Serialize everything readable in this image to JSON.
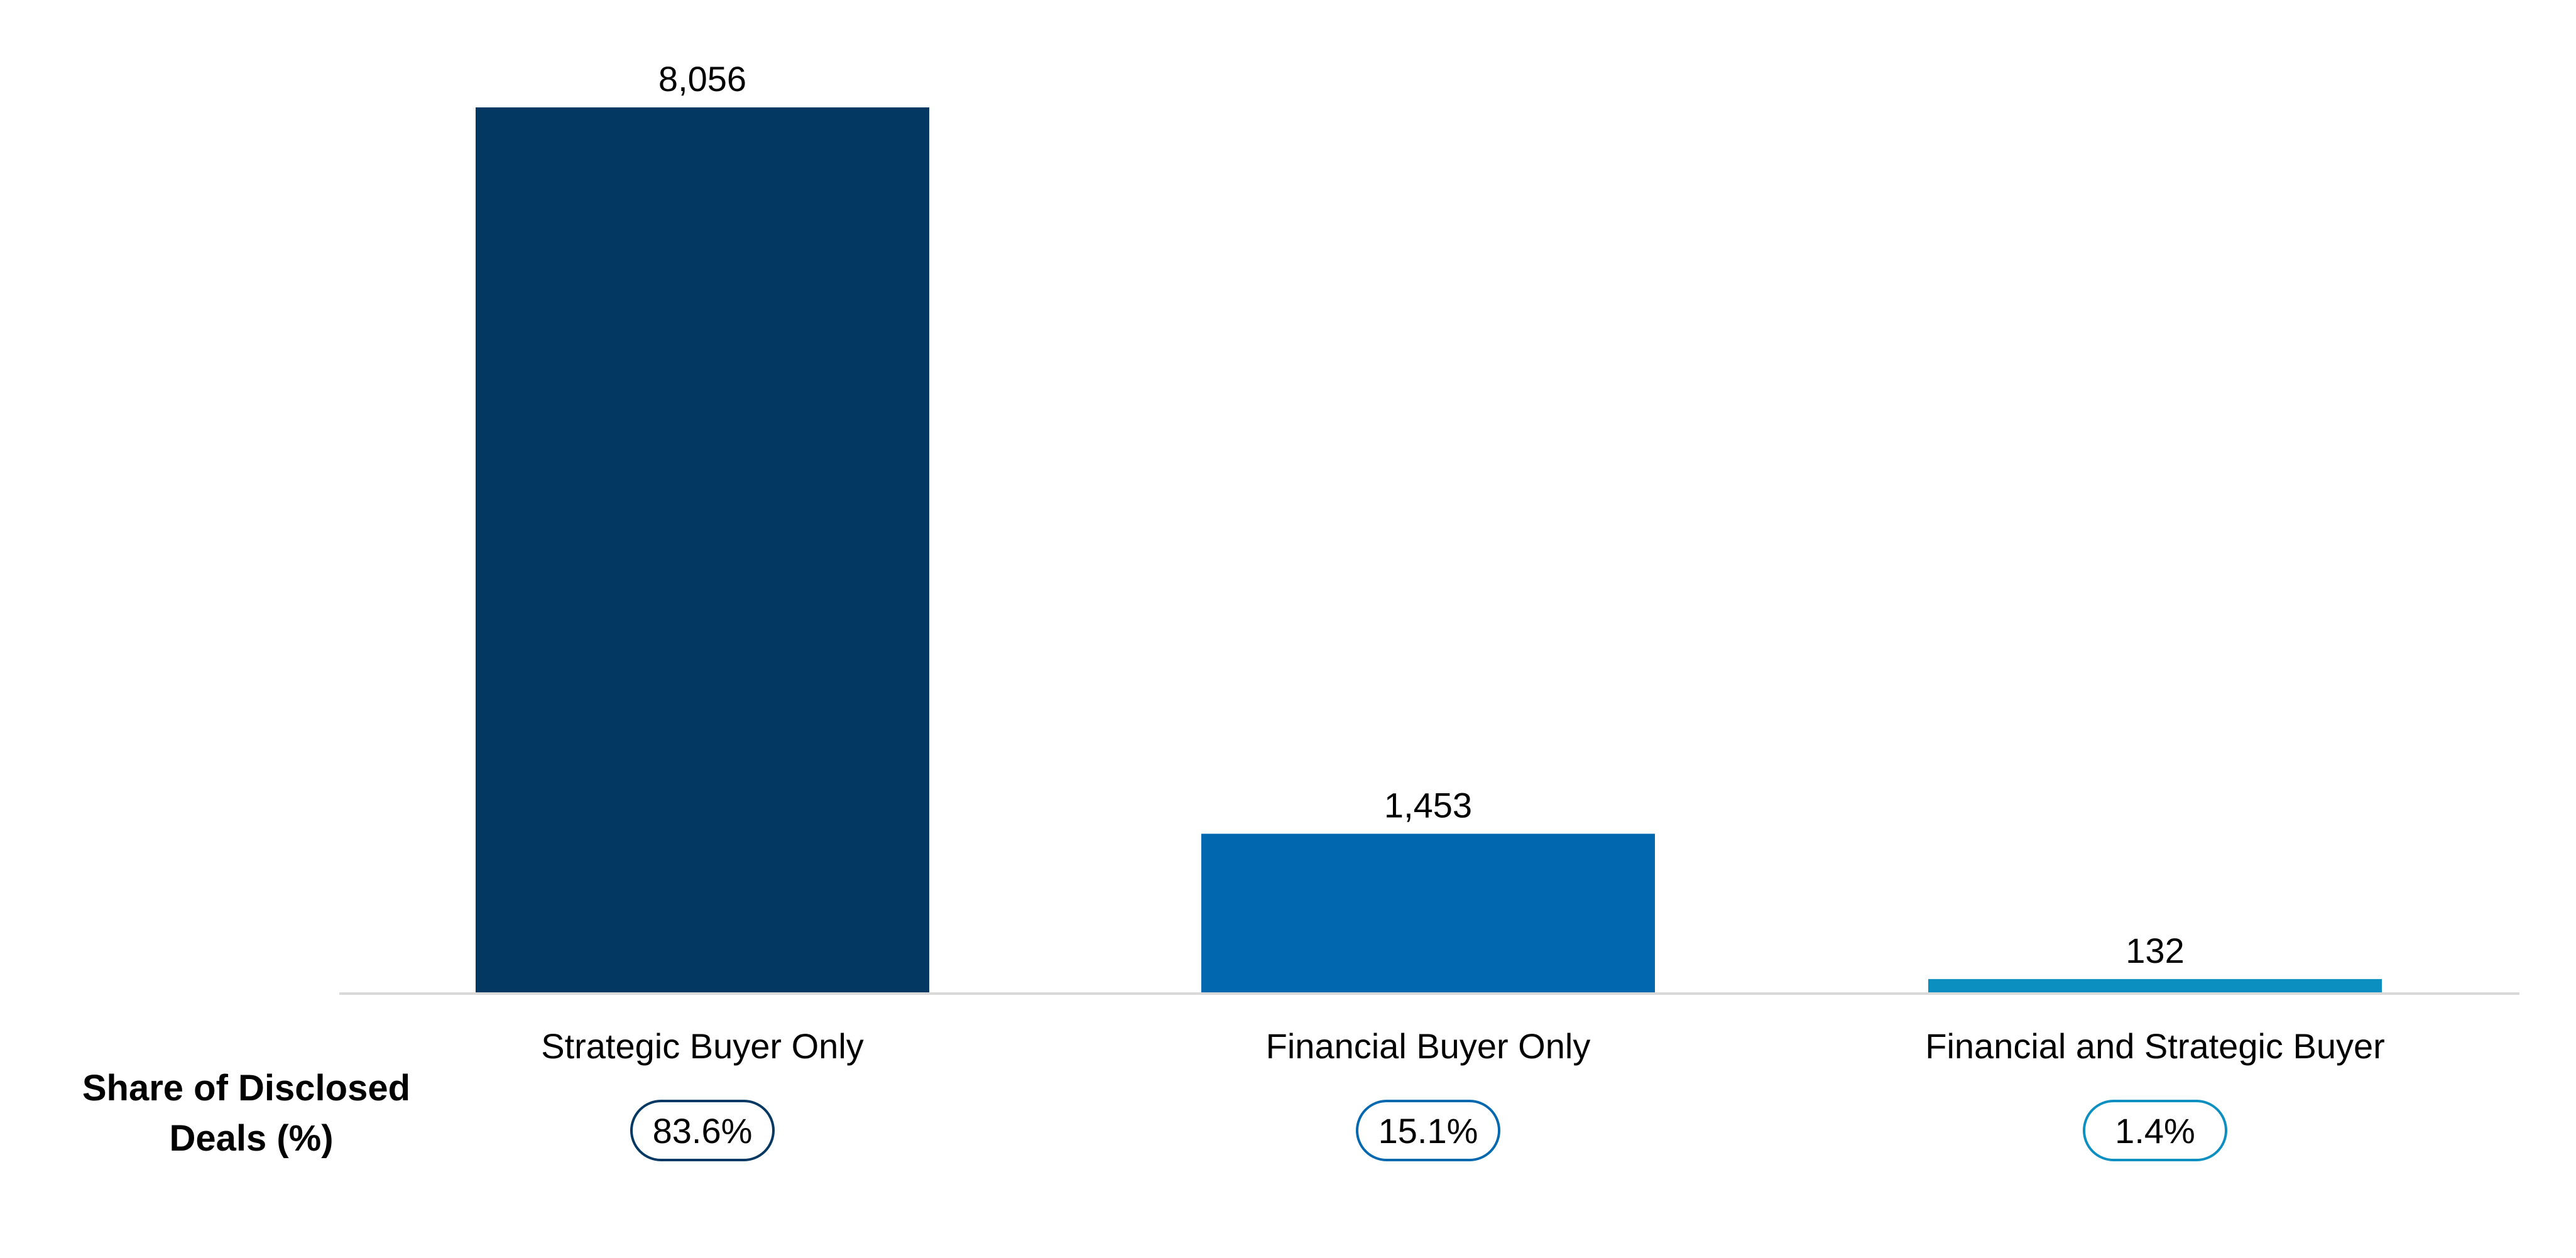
{
  "chart_data": {
    "type": "bar",
    "categories": [
      "Strategic Buyer Only",
      "Financial Buyer Only",
      "Financial and Strategic Buyer"
    ],
    "values": [
      8056,
      1453,
      132
    ],
    "value_labels": [
      "8,056",
      "1,453",
      "132"
    ],
    "share_label": "Share of Disclosed Deals (%)",
    "share_label_lines": [
      "Share of Disclosed",
      "Deals (%)"
    ],
    "shares": [
      "83.6%",
      "15.1%",
      "1.4%"
    ],
    "colors": [
      "#023862",
      "#0168B0",
      "#0A8FC0"
    ],
    "title": "",
    "xlabel": "",
    "ylabel": "",
    "ylim": [
      0,
      8056
    ],
    "grid": false,
    "legend": "none"
  }
}
